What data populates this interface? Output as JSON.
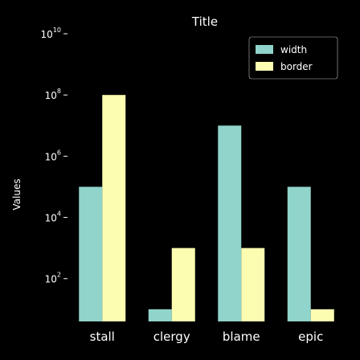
{
  "chart_data": {
    "type": "bar",
    "title": "Title",
    "xlabel": "",
    "ylabel": "Values",
    "y_scale": "log",
    "ylim": [
      4,
      10000000000
    ],
    "y_ticks": [
      {
        "value": 100,
        "base": "10",
        "exp": "2"
      },
      {
        "value": 10000,
        "base": "10",
        "exp": "4"
      },
      {
        "value": 1000000,
        "base": "10",
        "exp": "6"
      },
      {
        "value": 100000000,
        "base": "10",
        "exp": "8"
      },
      {
        "value": 10000000000,
        "base": "10",
        "exp": "10"
      }
    ],
    "categories": [
      "stall",
      "clergy",
      "blame",
      "epic"
    ],
    "series": [
      {
        "name": "width",
        "color": "#90d4cb",
        "values": [
          100000,
          10,
          10000000,
          100000
        ]
      },
      {
        "name": "border",
        "color": "#fdfdb2",
        "values": [
          100000000,
          1000,
          1000,
          10
        ]
      }
    ],
    "grid": false,
    "legend_position": "top-right",
    "background": "#000000",
    "text_color": "#ffffff"
  }
}
